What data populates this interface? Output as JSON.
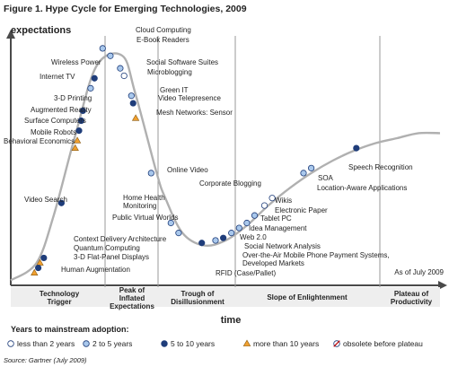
{
  "figure_title": "Figure 1. Hype Cycle for Emerging Technologies, 2009",
  "y_axis_label": "expectations",
  "x_axis_label": "time",
  "as_of": "As of July 2009",
  "source": "Source: Gartner (July 2009)",
  "watermark": "",
  "colors": {
    "curve": "#b0b0b0",
    "axis": "#4a4a4a",
    "dot_dark": "#1f3d7a",
    "dot_light": "#a9c8ec",
    "dot_outline": "#1f3d7a",
    "triangle": "#f0a030",
    "bar": "#eeeeee"
  },
  "legend": {
    "title": "Years to mainstream adoption:",
    "items": [
      {
        "label": "less than 2 years",
        "marker": "open-circle"
      },
      {
        "label": "2 to 5 years",
        "marker": "light-circle"
      },
      {
        "label": "5 to 10 years",
        "marker": "dark-circle"
      },
      {
        "label": "more than 10 years",
        "marker": "triangle"
      },
      {
        "label": "obsolete before plateau",
        "marker": "crossed-circle"
      }
    ]
  },
  "chart_data": {
    "type": "scatter",
    "title": "Hype Cycle for Emerging Technologies, 2009",
    "xlabel": "time",
    "ylabel": "expectations",
    "phases": [
      "Technology Trigger",
      "Peak of Inflated Expectations",
      "Trough of Disillusionment",
      "Slope of Enlightenment",
      "Plateau of Productivity"
    ],
    "curve": {
      "x": [
        0,
        0.06,
        0.1,
        0.15,
        0.2,
        0.26,
        0.29,
        0.34,
        0.36,
        0.4,
        0.45,
        0.5,
        0.55,
        0.6,
        0.65,
        0.7,
        0.75,
        0.8,
        0.85,
        0.9,
        0.95,
        1.0
      ],
      "y": [
        0.02,
        0.09,
        0.28,
        0.6,
        0.88,
        0.92,
        0.77,
        0.45,
        0.35,
        0.21,
        0.16,
        0.18,
        0.24,
        0.32,
        0.39,
        0.45,
        0.5,
        0.54,
        0.57,
        0.59,
        0.61,
        0.61
      ]
    },
    "technologies": [
      {
        "name": "Cloud Computing",
        "adoption": "2 to 5 years",
        "x": 0.214,
        "y": 0.95
      },
      {
        "name": "E-Book Readers",
        "adoption": "2 to 5 years",
        "x": 0.232,
        "y": 0.92
      },
      {
        "name": "Social Software Suites",
        "adoption": "2 to 5 years",
        "x": 0.255,
        "y": 0.87
      },
      {
        "name": "Microblogging",
        "adoption": "less than 2 years",
        "x": 0.264,
        "y": 0.84
      },
      {
        "name": "Green IT",
        "adoption": "2 to 5 years",
        "x": 0.281,
        "y": 0.76
      },
      {
        "name": "Video Telepresence",
        "adoption": "5 to 10 years",
        "x": 0.285,
        "y": 0.73
      },
      {
        "name": "Mesh Networks: Sensor",
        "adoption": "more than 10 years",
        "x": 0.291,
        "y": 0.67
      },
      {
        "name": "Online Video",
        "adoption": "2 to 5 years",
        "x": 0.327,
        "y": 0.45
      },
      {
        "name": "Home Health Monitoring",
        "adoption": "2 to 5 years",
        "x": 0.373,
        "y": 0.25
      },
      {
        "name": "Public Virtual Worlds",
        "adoption": "2 to 5 years",
        "x": 0.391,
        "y": 0.21
      },
      {
        "name": "RFID (Case/Pallet)",
        "adoption": "5 to 10 years",
        "x": 0.445,
        "y": 0.17
      },
      {
        "name": "Social Network Analysis",
        "adoption": "2 to 5 years",
        "x": 0.477,
        "y": 0.18
      },
      {
        "name": "Over-the-Air Mobile Phone Payment Systems, Developed Markets",
        "adoption": "5 to 10 years",
        "x": 0.495,
        "y": 0.19
      },
      {
        "name": "Web 2.0",
        "adoption": "2 to 5 years",
        "x": 0.514,
        "y": 0.21
      },
      {
        "name": "Idea Management",
        "adoption": "2 to 5 years",
        "x": 0.532,
        "y": 0.23
      },
      {
        "name": "Tablet PC",
        "adoption": "2 to 5 years",
        "x": 0.55,
        "y": 0.25
      },
      {
        "name": "Electronic Paper",
        "adoption": "2 to 5 years",
        "x": 0.568,
        "y": 0.28
      },
      {
        "name": "Wikis",
        "adoption": "less than 2 years",
        "x": 0.591,
        "y": 0.32
      },
      {
        "name": "Corporate Blogging",
        "adoption": "less than 2 years",
        "x": 0.609,
        "y": 0.35
      },
      {
        "name": "SOA",
        "adoption": "2 to 5 years",
        "x": 0.682,
        "y": 0.45
      },
      {
        "name": "Location-Aware Applications",
        "adoption": "2 to 5 years",
        "x": 0.7,
        "y": 0.47
      },
      {
        "name": "Speech Recognition",
        "adoption": "5 to 10 years",
        "x": 0.805,
        "y": 0.55
      },
      {
        "name": "Wireless Power",
        "adoption": "5 to 10 years",
        "x": 0.195,
        "y": 0.83
      },
      {
        "name": "Internet TV",
        "adoption": "2 to 5 years",
        "x": 0.186,
        "y": 0.79
      },
      {
        "name": "3-D Printing",
        "adoption": "5 to 10 years",
        "x": 0.168,
        "y": 0.7
      },
      {
        "name": "Augmented Reality",
        "adoption": "5 to 10 years",
        "x": 0.164,
        "y": 0.66
      },
      {
        "name": "Surface Computers",
        "adoption": "5 to 10 years",
        "x": 0.159,
        "y": 0.62
      },
      {
        "name": "Mobile Robots",
        "adoption": "more than 10 years",
        "x": 0.155,
        "y": 0.58
      },
      {
        "name": "Behavioral Economics",
        "adoption": "more than 10 years",
        "x": 0.15,
        "y": 0.55
      },
      {
        "name": "Video Search",
        "adoption": "5 to 10 years",
        "x": 0.118,
        "y": 0.33
      },
      {
        "name": "Context Delivery Architecture",
        "adoption": "5 to 10 years",
        "x": 0.077,
        "y": 0.11
      },
      {
        "name": "Quantum Computing",
        "adoption": "more than 10 years",
        "x": 0.068,
        "y": 0.09
      },
      {
        "name": "3-D Flat-Panel Displays",
        "adoption": "5 to 10 years",
        "x": 0.064,
        "y": 0.07
      },
      {
        "name": "Human Augmentation",
        "adoption": "more than 10 years",
        "x": 0.055,
        "y": 0.05
      }
    ]
  }
}
